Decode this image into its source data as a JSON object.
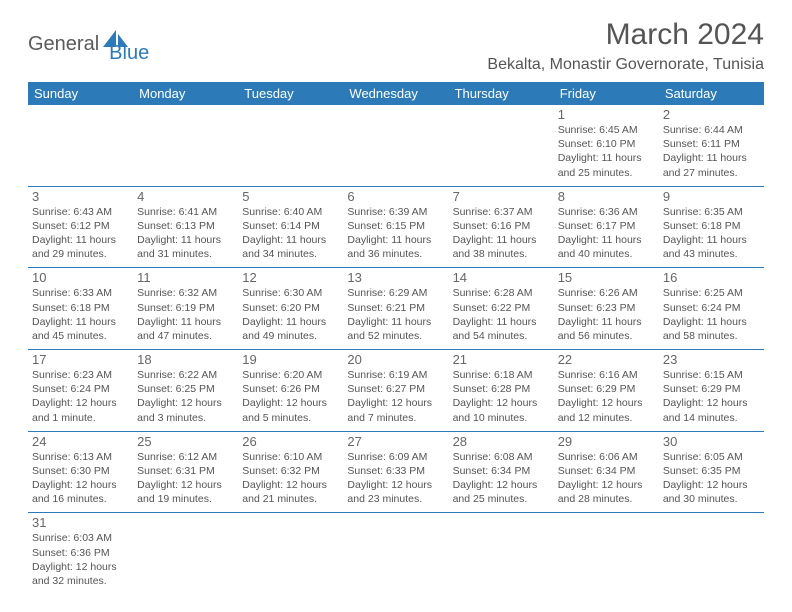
{
  "brand": {
    "part1": "General",
    "part2": "Blue"
  },
  "title": "March 2024",
  "location": "Bekalta, Monastir Governorate, Tunisia",
  "colors": {
    "header_bg": "#2c7bb8",
    "header_text": "#ffffff",
    "border": "#2c7bb8",
    "text": "#555555",
    "background": "#ffffff"
  },
  "calendar": {
    "day_headers": [
      "Sunday",
      "Monday",
      "Tuesday",
      "Wednesday",
      "Thursday",
      "Friday",
      "Saturday"
    ],
    "cell_fontsize": 10.5,
    "daynum_fontsize": 13,
    "header_fontsize": 13,
    "weeks": [
      [
        null,
        null,
        null,
        null,
        null,
        {
          "n": "1",
          "sunrise": "6:45 AM",
          "sunset": "6:10 PM",
          "daylight": "11 hours and 25 minutes."
        },
        {
          "n": "2",
          "sunrise": "6:44 AM",
          "sunset": "6:11 PM",
          "daylight": "11 hours and 27 minutes."
        }
      ],
      [
        {
          "n": "3",
          "sunrise": "6:43 AM",
          "sunset": "6:12 PM",
          "daylight": "11 hours and 29 minutes."
        },
        {
          "n": "4",
          "sunrise": "6:41 AM",
          "sunset": "6:13 PM",
          "daylight": "11 hours and 31 minutes."
        },
        {
          "n": "5",
          "sunrise": "6:40 AM",
          "sunset": "6:14 PM",
          "daylight": "11 hours and 34 minutes."
        },
        {
          "n": "6",
          "sunrise": "6:39 AM",
          "sunset": "6:15 PM",
          "daylight": "11 hours and 36 minutes."
        },
        {
          "n": "7",
          "sunrise": "6:37 AM",
          "sunset": "6:16 PM",
          "daylight": "11 hours and 38 minutes."
        },
        {
          "n": "8",
          "sunrise": "6:36 AM",
          "sunset": "6:17 PM",
          "daylight": "11 hours and 40 minutes."
        },
        {
          "n": "9",
          "sunrise": "6:35 AM",
          "sunset": "6:18 PM",
          "daylight": "11 hours and 43 minutes."
        }
      ],
      [
        {
          "n": "10",
          "sunrise": "6:33 AM",
          "sunset": "6:18 PM",
          "daylight": "11 hours and 45 minutes."
        },
        {
          "n": "11",
          "sunrise": "6:32 AM",
          "sunset": "6:19 PM",
          "daylight": "11 hours and 47 minutes."
        },
        {
          "n": "12",
          "sunrise": "6:30 AM",
          "sunset": "6:20 PM",
          "daylight": "11 hours and 49 minutes."
        },
        {
          "n": "13",
          "sunrise": "6:29 AM",
          "sunset": "6:21 PM",
          "daylight": "11 hours and 52 minutes."
        },
        {
          "n": "14",
          "sunrise": "6:28 AM",
          "sunset": "6:22 PM",
          "daylight": "11 hours and 54 minutes."
        },
        {
          "n": "15",
          "sunrise": "6:26 AM",
          "sunset": "6:23 PM",
          "daylight": "11 hours and 56 minutes."
        },
        {
          "n": "16",
          "sunrise": "6:25 AM",
          "sunset": "6:24 PM",
          "daylight": "11 hours and 58 minutes."
        }
      ],
      [
        {
          "n": "17",
          "sunrise": "6:23 AM",
          "sunset": "6:24 PM",
          "daylight": "12 hours and 1 minute."
        },
        {
          "n": "18",
          "sunrise": "6:22 AM",
          "sunset": "6:25 PM",
          "daylight": "12 hours and 3 minutes."
        },
        {
          "n": "19",
          "sunrise": "6:20 AM",
          "sunset": "6:26 PM",
          "daylight": "12 hours and 5 minutes."
        },
        {
          "n": "20",
          "sunrise": "6:19 AM",
          "sunset": "6:27 PM",
          "daylight": "12 hours and 7 minutes."
        },
        {
          "n": "21",
          "sunrise": "6:18 AM",
          "sunset": "6:28 PM",
          "daylight": "12 hours and 10 minutes."
        },
        {
          "n": "22",
          "sunrise": "6:16 AM",
          "sunset": "6:29 PM",
          "daylight": "12 hours and 12 minutes."
        },
        {
          "n": "23",
          "sunrise": "6:15 AM",
          "sunset": "6:29 PM",
          "daylight": "12 hours and 14 minutes."
        }
      ],
      [
        {
          "n": "24",
          "sunrise": "6:13 AM",
          "sunset": "6:30 PM",
          "daylight": "12 hours and 16 minutes."
        },
        {
          "n": "25",
          "sunrise": "6:12 AM",
          "sunset": "6:31 PM",
          "daylight": "12 hours and 19 minutes."
        },
        {
          "n": "26",
          "sunrise": "6:10 AM",
          "sunset": "6:32 PM",
          "daylight": "12 hours and 21 minutes."
        },
        {
          "n": "27",
          "sunrise": "6:09 AM",
          "sunset": "6:33 PM",
          "daylight": "12 hours and 23 minutes."
        },
        {
          "n": "28",
          "sunrise": "6:08 AM",
          "sunset": "6:34 PM",
          "daylight": "12 hours and 25 minutes."
        },
        {
          "n": "29",
          "sunrise": "6:06 AM",
          "sunset": "6:34 PM",
          "daylight": "12 hours and 28 minutes."
        },
        {
          "n": "30",
          "sunrise": "6:05 AM",
          "sunset": "6:35 PM",
          "daylight": "12 hours and 30 minutes."
        }
      ],
      [
        {
          "n": "31",
          "sunrise": "6:03 AM",
          "sunset": "6:36 PM",
          "daylight": "12 hours and 32 minutes."
        },
        null,
        null,
        null,
        null,
        null,
        null
      ]
    ],
    "labels": {
      "sunrise": "Sunrise:",
      "sunset": "Sunset:",
      "daylight": "Daylight:"
    }
  }
}
